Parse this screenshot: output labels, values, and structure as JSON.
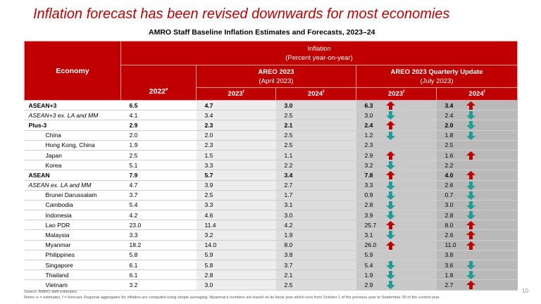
{
  "title": "Inflation forecast has been revised downwards for most economies",
  "table_title": "AMRO Staff Baseline Inflation Estimates and Forecasts, 2023–24",
  "header": {
    "economy": "Economy",
    "inflation": "Inflation",
    "inflation_unit": "(Percent year-on-year)",
    "col_2022": "2022",
    "col_2022_sup": "e",
    "areo": "AREO 2023",
    "areo_sub": "(April 2023)",
    "update": "AREO 2023 Quarterly Update",
    "update_sub": "(July 2023)",
    "y2023": "2023",
    "y2024": "2024",
    "f_sup": "f"
  },
  "rows": [
    {
      "name": "ASEAN+3",
      "style": "bold",
      "v": [
        "6.5",
        "4.7",
        "3.0",
        "6.3",
        "3.4"
      ],
      "arrows": [
        "up",
        "up"
      ]
    },
    {
      "name": "ASEAN+3 ex. LA and MM",
      "style": "italic",
      "v": [
        "4.1",
        "3.4",
        "2.5",
        "3.0",
        "2.4"
      ],
      "arrows": [
        "down",
        "down"
      ]
    },
    {
      "name": "Plus-3",
      "style": "bold-indent",
      "v": [
        "2.9",
        "2.3",
        "2.1",
        "2.4",
        "2.0"
      ],
      "arrows": [
        "up",
        "down"
      ]
    },
    {
      "name": "China",
      "style": "sub",
      "v": [
        "2.0",
        "2.0",
        "2.5",
        "1.2",
        "1.8"
      ],
      "arrows": [
        "down",
        "down"
      ]
    },
    {
      "name": "Hong Kong, China",
      "style": "sub",
      "v": [
        "1.9",
        "2.3",
        "2.5",
        "2.3",
        "2.5"
      ],
      "arrows": [
        "",
        ""
      ]
    },
    {
      "name": "Japan",
      "style": "sub",
      "v": [
        "2.5",
        "1.5",
        "1.1",
        "2.9",
        "1.6"
      ],
      "arrows": [
        "up",
        "up"
      ]
    },
    {
      "name": "Korea",
      "style": "sub",
      "v": [
        "5.1",
        "3.3",
        "2.2",
        "3.2",
        "2.2"
      ],
      "arrows": [
        "down",
        ""
      ]
    },
    {
      "name": "ASEAN",
      "style": "bold",
      "v": [
        "7.9",
        "5.7",
        "3.4",
        "7.8",
        "4.0"
      ],
      "arrows": [
        "up",
        "up"
      ]
    },
    {
      "name": "ASEAN ex. LA and MM",
      "style": "italic-indent",
      "v": [
        "4.7",
        "3.9",
        "2.7",
        "3.3",
        "2.6"
      ],
      "arrows": [
        "down",
        "down"
      ]
    },
    {
      "name": "Brunei Darussalam",
      "style": "sub",
      "v": [
        "3.7",
        "2.5",
        "1.7",
        "0.9",
        "0.7"
      ],
      "arrows": [
        "down",
        "down"
      ]
    },
    {
      "name": "Cambodia",
      "style": "sub",
      "v": [
        "5.4",
        "3.3",
        "3.1",
        "2.8",
        "3.0"
      ],
      "arrows": [
        "down",
        "down"
      ]
    },
    {
      "name": "Indonesia",
      "style": "sub",
      "v": [
        "4.2",
        "4.6",
        "3.0",
        "3.9",
        "2.8"
      ],
      "arrows": [
        "down",
        "down"
      ]
    },
    {
      "name": "Lao PDR",
      "style": "sub",
      "v": [
        "23.0",
        "11.4",
        "4.2",
        "25.7",
        "8.0"
      ],
      "arrows": [
        "up",
        "up"
      ]
    },
    {
      "name": "Malaysia",
      "style": "sub",
      "v": [
        "3.3",
        "3.2",
        "1.9",
        "3.1",
        "2.6"
      ],
      "arrows": [
        "down",
        "up"
      ]
    },
    {
      "name": "Myanmar",
      "style": "sub",
      "v": [
        "18.2",
        "14.0",
        "8.0",
        "26.0",
        "11.0"
      ],
      "arrows": [
        "up",
        "up"
      ]
    },
    {
      "name": "Philippines",
      "style": "sub",
      "v": [
        "5.8",
        "5.9",
        "3.8",
        "5.9",
        "3.8"
      ],
      "arrows": [
        "",
        ""
      ]
    },
    {
      "name": "Singapore",
      "style": "sub",
      "v": [
        "6.1",
        "5.8",
        "3.7",
        "5.4",
        "3.6"
      ],
      "arrows": [
        "down",
        "down"
      ]
    },
    {
      "name": "Thailand",
      "style": "sub",
      "v": [
        "6.1",
        "2.8",
        "2.1",
        "1.9",
        "1.8"
      ],
      "arrows": [
        "down",
        "down"
      ]
    },
    {
      "name": "Vietnam",
      "style": "sub",
      "v": [
        "3.2",
        "3.0",
        "2.5",
        "2.9",
        "2.7"
      ],
      "arrows": [
        "down",
        "up"
      ]
    }
  ],
  "source": "Source: AMRO staff estimates.",
  "notes": "Notes: e = estimates, f = forecast. Regional aggregates for inflation are computed using simple averaging. Myanmar's numbers are based on its fiscal year which runs from October 1 of the previous year to September 30 of the current year.",
  "page_number": "10",
  "colors": {
    "accent": "#c00000",
    "up": "#c00000",
    "down": "#1f9e99"
  },
  "icons": {
    "up": "up-arrow-icon",
    "down": "down-arrow-icon"
  }
}
